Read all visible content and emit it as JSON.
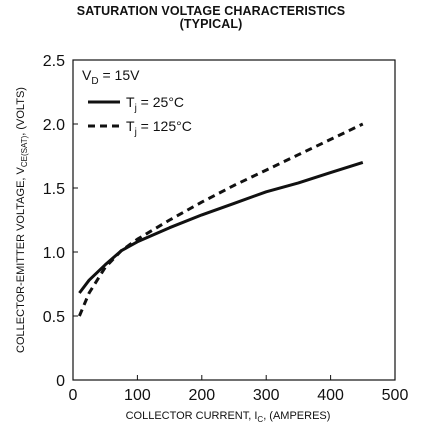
{
  "chart_data": {
    "type": "line",
    "title": "SATURATION VOLTAGE CHARACTERISTICS",
    "subtitle": "(TYPICAL)",
    "xlabel": {
      "main": "COLLECTOR CURRENT, I",
      "sub": "C",
      "tail": ", (AMPERES)"
    },
    "ylabel": {
      "main": "COLLECTOR-EMITTER VOLTAGE, V",
      "sub": "CE(SAT)",
      "tail": ", (VOLTS)"
    },
    "xlim": [
      0,
      500
    ],
    "ylim": [
      0,
      2.5
    ],
    "xticks": [
      {
        "value": 0,
        "label": "0"
      },
      {
        "value": 100,
        "label": "100"
      },
      {
        "value": 200,
        "label": "200"
      },
      {
        "value": 300,
        "label": "300"
      },
      {
        "value": 400,
        "label": "400"
      },
      {
        "value": 500,
        "label": "500"
      }
    ],
    "yticks": [
      {
        "value": 0,
        "label": "0"
      },
      {
        "value": 0.5,
        "label": "0.5"
      },
      {
        "value": 1.0,
        "label": "1.0"
      },
      {
        "value": 1.5,
        "label": "1.5"
      },
      {
        "value": 2.0,
        "label": "2.0"
      },
      {
        "value": 2.5,
        "label": "2.5"
      }
    ],
    "grid": false,
    "legend": {
      "placement": "top-left",
      "condition": {
        "main": "V",
        "sub": "D",
        "tail": " = 15V"
      }
    },
    "series": [
      {
        "name": "Tj = 25°C",
        "label_main": "T",
        "label_sub": "j",
        "label_tail": " = 25°C",
        "style": "solid",
        "x": [
          10,
          25,
          50,
          75,
          100,
          150,
          200,
          250,
          300,
          350,
          400,
          450
        ],
        "y": [
          0.68,
          0.78,
          0.9,
          1.01,
          1.08,
          1.19,
          1.29,
          1.38,
          1.47,
          1.54,
          1.62,
          1.7
        ]
      },
      {
        "name": "Tj = 125°C",
        "label_main": "T",
        "label_sub": "j",
        "label_tail": " = 125°C",
        "style": "dashed",
        "x": [
          10,
          25,
          50,
          75,
          100,
          150,
          200,
          250,
          300,
          350,
          400,
          450
        ],
        "y": [
          0.5,
          0.68,
          0.88,
          1.01,
          1.1,
          1.25,
          1.39,
          1.52,
          1.64,
          1.76,
          1.88,
          2.0
        ]
      }
    ]
  }
}
